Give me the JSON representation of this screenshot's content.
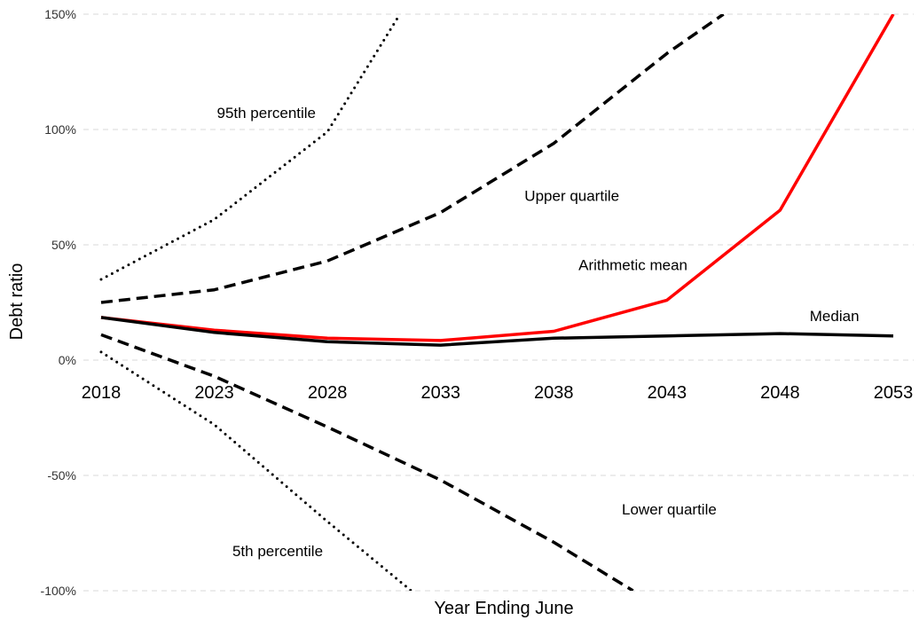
{
  "chart_data": {
    "type": "line",
    "title": "",
    "xlabel": "Year Ending June",
    "ylabel": "Debt ratio",
    "x": [
      2018,
      2023,
      2028,
      2033,
      2038,
      2043,
      2048,
      2053
    ],
    "xticks": [
      "2018",
      "2023",
      "2028",
      "2033",
      "2038",
      "2043",
      "2048",
      "2053"
    ],
    "ylim": [
      -100,
      150
    ],
    "yticks": [
      150,
      100,
      50,
      0,
      -50,
      -100
    ],
    "ytick_labels": [
      "150%",
      "100%",
      "50%",
      "0%",
      "-50%",
      "-100%"
    ],
    "grid": true,
    "series": [
      {
        "label": "95th percentile",
        "style": "dotted",
        "color": "#000000",
        "points": [
          [
            2018,
            35
          ],
          [
            2023,
            61
          ],
          [
            2028,
            99
          ],
          [
            2031.2,
            150
          ]
        ]
      },
      {
        "label": "Upper quartile",
        "style": "dashed",
        "color": "#000000",
        "points": [
          [
            2018,
            25
          ],
          [
            2023,
            30.5
          ],
          [
            2028,
            43
          ],
          [
            2033,
            64
          ],
          [
            2038,
            94
          ],
          [
            2043,
            133
          ],
          [
            2045.5,
            150
          ]
        ]
      },
      {
        "label": "Arithmetic mean",
        "style": "solid",
        "color": "#ff0000",
        "points": [
          [
            2018,
            18.5
          ],
          [
            2023,
            13
          ],
          [
            2028,
            9.5
          ],
          [
            2033,
            8.5
          ],
          [
            2038,
            12.5
          ],
          [
            2043,
            26
          ],
          [
            2048,
            65
          ],
          [
            2053,
            150
          ]
        ]
      },
      {
        "label": "Median",
        "style": "solid",
        "color": "#000000",
        "points": [
          [
            2018,
            18.5
          ],
          [
            2023,
            12
          ],
          [
            2028,
            8
          ],
          [
            2033,
            6.5
          ],
          [
            2038,
            9.5
          ],
          [
            2043,
            10.5
          ],
          [
            2048,
            11.5
          ],
          [
            2053,
            10.5
          ]
        ]
      },
      {
        "label": "Lower quartile",
        "style": "dashed",
        "color": "#000000",
        "points": [
          [
            2018,
            11
          ],
          [
            2023,
            -7
          ],
          [
            2028,
            -29
          ],
          [
            2033,
            -52
          ],
          [
            2038,
            -79
          ],
          [
            2041.5,
            -100
          ]
        ]
      },
      {
        "label": "5th percentile",
        "style": "dotted",
        "color": "#000000",
        "points": [
          [
            2018,
            3.5
          ],
          [
            2023,
            -28
          ],
          [
            2028,
            -70
          ],
          [
            2031.7,
            -100
          ]
        ]
      }
    ],
    "annotations": [
      {
        "text": "95th percentile",
        "x": 2025.3,
        "y": 105
      },
      {
        "text": "Upper quartile",
        "x": 2038.8,
        "y": 69
      },
      {
        "text": "Arithmetic mean",
        "x": 2041.5,
        "y": 39
      },
      {
        "text": "Median",
        "x": 2050.4,
        "y": 17
      },
      {
        "text": "Lower quartile",
        "x": 2043.1,
        "y": -67
      },
      {
        "text": "5th percentile",
        "x": 2025.8,
        "y": -85
      }
    ]
  }
}
